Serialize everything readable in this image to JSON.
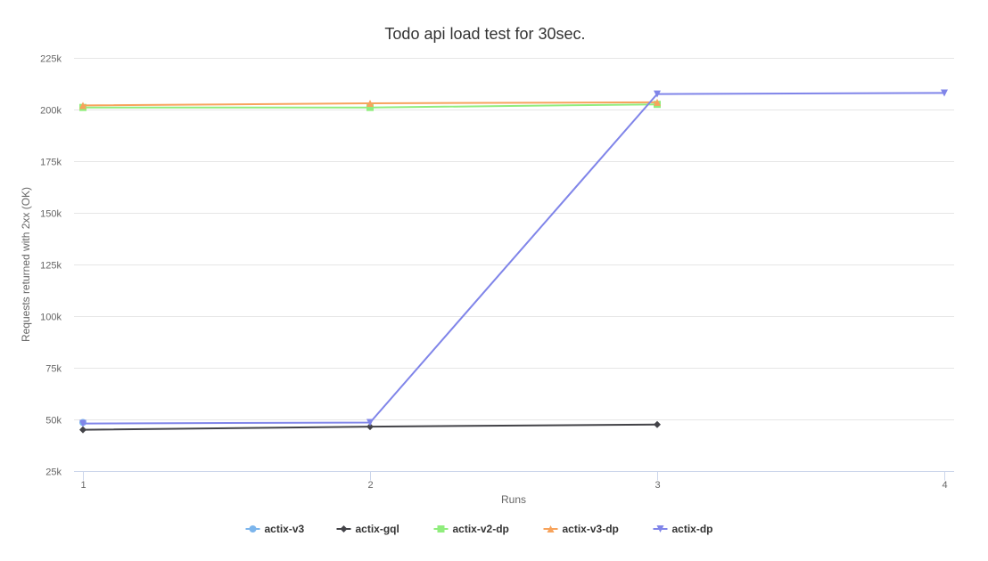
{
  "chart_data": {
    "type": "line",
    "title": "Todo api load test for 30sec.",
    "xlabel": "Runs",
    "ylabel": "Requests returned with 2xx (OK)",
    "x": [
      1,
      2,
      3,
      4
    ],
    "x_tick_labels": [
      "1",
      "2",
      "3",
      "4"
    ],
    "ylim": [
      25000,
      225000
    ],
    "y_ticks": [
      25000,
      50000,
      75000,
      100000,
      125000,
      150000,
      175000,
      200000,
      225000
    ],
    "y_tick_labels": [
      "25k",
      "50k",
      "75k",
      "100k",
      "125k",
      "150k",
      "175k",
      "200k",
      "225k"
    ],
    "grid": true,
    "legend_position": "bottom-center",
    "series": [
      {
        "name": "actix-v3",
        "color": "#7cb5ec",
        "marker": "circle",
        "values": [
          48500,
          null,
          null,
          null
        ]
      },
      {
        "name": "actix-gql",
        "color": "#434348",
        "marker": "diamond",
        "values": [
          45000,
          46500,
          47500,
          null
        ]
      },
      {
        "name": "actix-v2-dp",
        "color": "#90ed7d",
        "marker": "square",
        "values": [
          201000,
          201000,
          202500,
          null
        ]
      },
      {
        "name": "actix-v3-dp",
        "color": "#f7a35c",
        "marker": "triangle",
        "values": [
          202000,
          203000,
          203500,
          null
        ]
      },
      {
        "name": "actix-dp",
        "color": "#8085e9",
        "marker": "triangle-down",
        "values": [
          48000,
          48500,
          207500,
          208000
        ]
      }
    ]
  }
}
